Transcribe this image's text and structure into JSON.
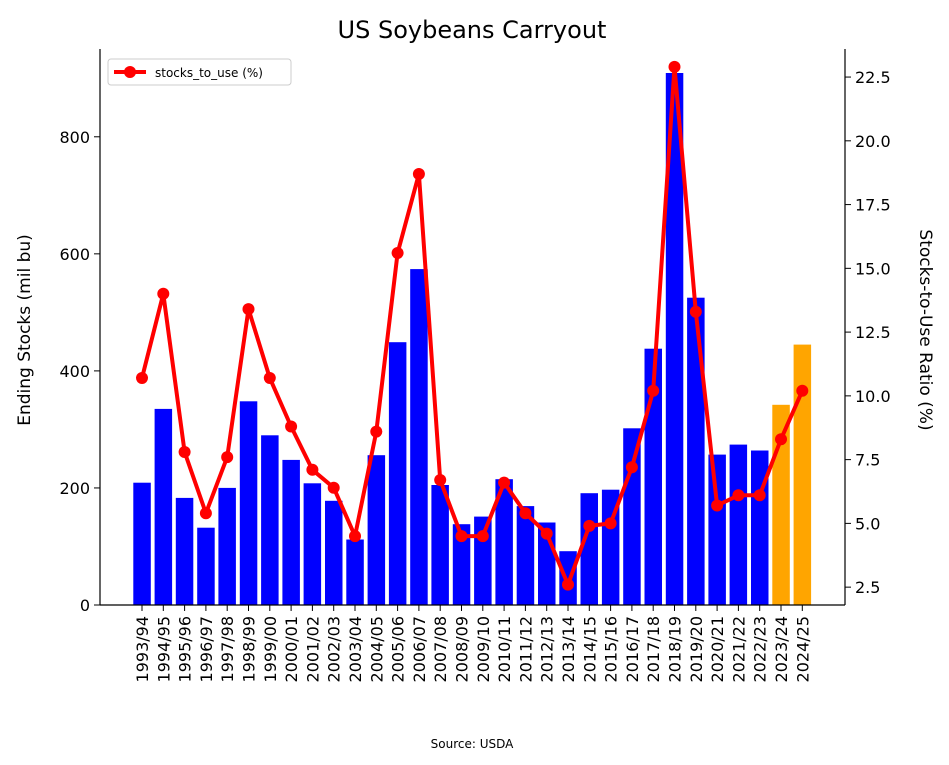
{
  "chart_data": {
    "type": "bar",
    "title": "US Soybeans Carryout",
    "ylabel": "Ending Stocks (mil bu)",
    "y2label": "Stocks-to-Use Ratio (%)",
    "source": "Source: USDA",
    "categories": [
      "1993/94",
      "1994/95",
      "1995/96",
      "1996/97",
      "1997/98",
      "1998/99",
      "1999/00",
      "2000/01",
      "2001/02",
      "2002/03",
      "2003/04",
      "2004/05",
      "2005/06",
      "2006/07",
      "2007/08",
      "2008/09",
      "2009/10",
      "2010/11",
      "2011/12",
      "2012/13",
      "2013/14",
      "2014/15",
      "2015/16",
      "2016/17",
      "2017/18",
      "2018/19",
      "2019/20",
      "2020/21",
      "2021/22",
      "2022/23",
      "2023/24",
      "2024/25"
    ],
    "series": [
      {
        "name": "",
        "values": [
          209,
          335,
          183,
          132,
          200,
          348,
          290,
          248,
          208,
          178,
          112,
          256,
          449,
          574,
          205,
          138,
          151,
          215,
          169,
          141,
          92,
          191,
          197,
          302,
          438,
          909,
          525,
          257,
          274,
          264,
          342,
          445
        ],
        "colors": [
          "#0000ff",
          "#0000ff",
          "#0000ff",
          "#0000ff",
          "#0000ff",
          "#0000ff",
          "#0000ff",
          "#0000ff",
          "#0000ff",
          "#0000ff",
          "#0000ff",
          "#0000ff",
          "#0000ff",
          "#0000ff",
          "#0000ff",
          "#0000ff",
          "#0000ff",
          "#0000ff",
          "#0000ff",
          "#0000ff",
          "#0000ff",
          "#0000ff",
          "#0000ff",
          "#0000ff",
          "#0000ff",
          "#0000ff",
          "#0000ff",
          "#0000ff",
          "#0000ff",
          "#0000ff",
          "#ffa500",
          "#ffa500"
        ]
      },
      {
        "name": "stocks_to_use (%)",
        "axis": "right",
        "type": "line",
        "color": "#ff0000",
        "values": [
          10.7,
          14.0,
          7.8,
          5.4,
          7.6,
          13.4,
          10.7,
          8.8,
          7.1,
          6.4,
          4.5,
          8.6,
          15.6,
          18.7,
          6.7,
          4.5,
          4.5,
          6.6,
          5.4,
          4.6,
          2.6,
          4.9,
          5.0,
          7.2,
          10.2,
          22.9,
          13.3,
          5.7,
          6.1,
          6.1,
          8.3,
          10.2
        ]
      }
    ],
    "ylim": [
      0,
      950
    ],
    "y2lim": [
      1.8,
      23.6
    ],
    "yticks": [
      "0",
      "200",
      "400",
      "600",
      "800"
    ],
    "y2ticks": [
      "2.5",
      "5.0",
      "7.5",
      "10.0",
      "12.5",
      "15.0",
      "17.5",
      "20.0",
      "22.5"
    ],
    "legend": "top-left",
    "grid": false
  }
}
